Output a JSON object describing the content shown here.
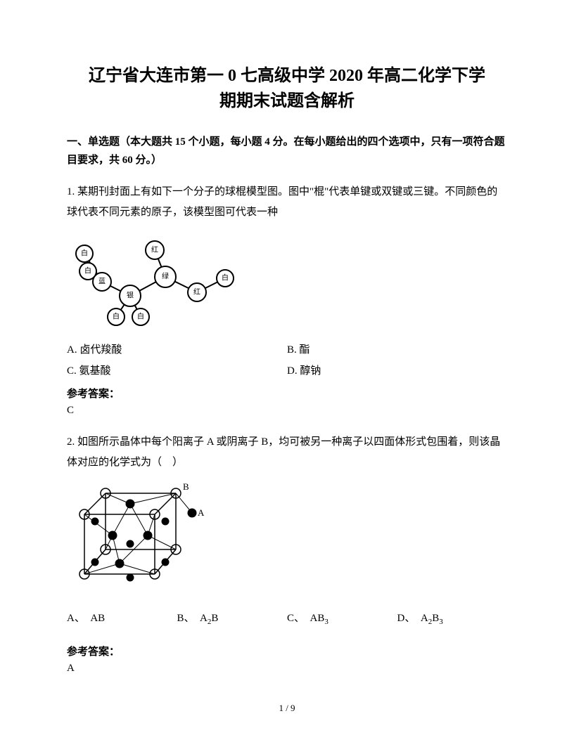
{
  "title_line1": "辽宁省大连市第一 0 七高级中学 2020 年高二化学下学",
  "title_line2": "期期末试题含解析",
  "section_header": "一、单选题（本大题共 15 个小题，每小题 4 分。在每小题给出的四个选项中，只有一项符合题目要求，共 60 分。）",
  "q1": {
    "text": "1. 某期刊封面上有如下一个分子的球棍模型图。图中\"棍\"代表单键或双键或三键。不同颜色的球代表不同元素的原子，该模型图可代表一种",
    "atom_labels": [
      "白",
      "白",
      "蓝",
      "白",
      "白",
      "银",
      "红",
      "绿",
      "红",
      "白"
    ],
    "optA": "A. 卤代羧酸",
    "optB": "B. 酯",
    "optC": "C. 氨基酸",
    "optD": "D. 醇钠",
    "answer_label": "参考答案：",
    "answer": "C"
  },
  "q2": {
    "text": "2. 如图所示晶体中每个阳离子 A 或阴离子 B，均可被另一种离子以四面体形式包围着，则该晶体对应的化学式为（　）",
    "label_B": "B",
    "label_A": "A",
    "optA_prefix": "A、",
    "optA": "AB",
    "optB_prefix": "B、",
    "optB_html": "A<sub>2</sub>B",
    "optC_prefix": "C、",
    "optC_html": "AB<sub>3</sub>",
    "optD_prefix": "D、",
    "optD_html": "A<sub>2</sub>B<sub>3</sub>",
    "answer_label": "参考答案：",
    "answer": "A"
  },
  "pagenum": "1 / 9"
}
